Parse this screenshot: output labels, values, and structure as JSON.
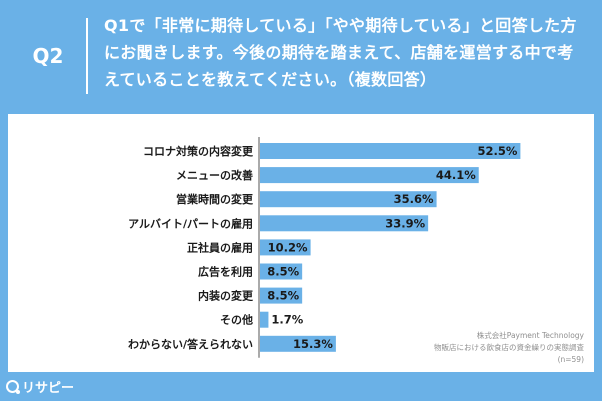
{
  "header": {
    "q_label": "Q2",
    "question": "Q1で「非常に期待している」「やや期待している」と回答した方にお聞きします。今後の期待を踏まえて、店舗を運営する中で考えていることを教えてください。（複数回答）"
  },
  "colors": {
    "background": "#6ab1e7",
    "bar": "#6ab1e7",
    "axis": "#555555"
  },
  "chart_data": {
    "type": "bar",
    "orientation": "horizontal",
    "categories": [
      "コロナ対策の内容変更",
      "メニューの改善",
      "営業時間の変更",
      "アルバイト/パートの雇用",
      "正社員の雇用",
      "広告を利用",
      "内装の変更",
      "その他",
      "わからない/答えられない"
    ],
    "values": [
      52.5,
      44.1,
      35.6,
      33.9,
      10.2,
      8.5,
      8.5,
      1.7,
      15.3
    ],
    "value_labels": [
      "52.5%",
      "44.1%",
      "35.6%",
      "33.9%",
      "10.2%",
      "8.5%",
      "8.5%",
      "1.7%",
      "15.3%"
    ],
    "xlim": [
      0,
      100
    ],
    "unit": "%"
  },
  "source": {
    "line1": "株式会社Payment Technology",
    "line2": "物販店における飲食店の資金繰りの実態調査",
    "line3": "(n=59)"
  },
  "logo": {
    "text": "リサピー"
  }
}
